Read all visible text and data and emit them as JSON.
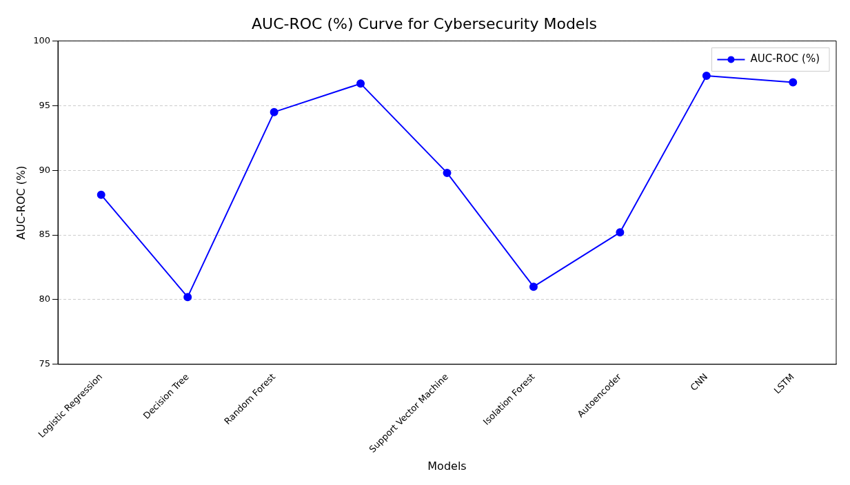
{
  "chart_data": {
    "type": "line",
    "title": "AUC-ROC (%) Curve for Cybersecurity Models",
    "xlabel": "Models",
    "ylabel": "AUC-ROC (%)",
    "categories": [
      "Logistic Regression",
      "Decision Tree",
      "Random Forest",
      null,
      "Support Vector Machine",
      "Isolation Forest",
      "Autoencoder",
      "CNN",
      "LSTM"
    ],
    "series": [
      {
        "name": "AUC-ROC (%)",
        "color": "#0000ff",
        "values": [
          88.1,
          80.2,
          94.5,
          96.7,
          89.8,
          81.0,
          85.2,
          97.3,
          96.8
        ]
      }
    ],
    "ylim": [
      75,
      100
    ],
    "yticks": [
      75,
      80,
      85,
      90,
      95,
      100
    ],
    "grid": "y",
    "legend": "top right",
    "marker": "circle",
    "line_style": "solid"
  }
}
